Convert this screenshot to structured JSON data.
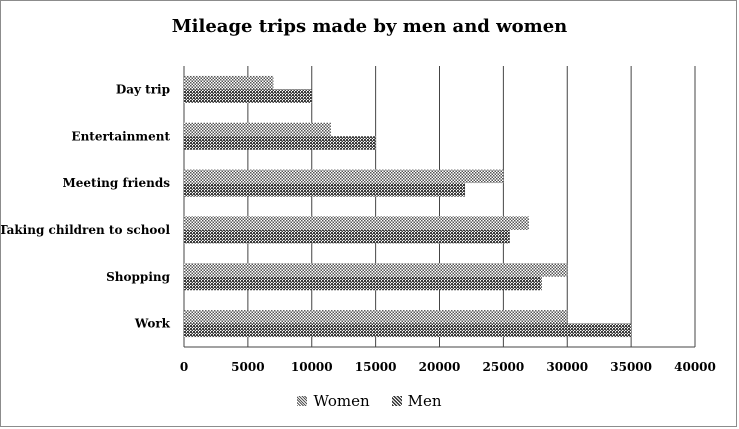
{
  "chart_data": {
    "type": "bar",
    "orientation": "horizontal",
    "title": "Mileage trips made by men and women",
    "categories": [
      "Day trip",
      "Entertainment",
      "Meeting friends",
      "Taking children to school",
      "Shopping",
      "Work"
    ],
    "series": [
      {
        "name": "Women",
        "values": [
          7000,
          11500,
          25000,
          27000,
          30000,
          30000
        ]
      },
      {
        "name": "Men",
        "values": [
          10000,
          15000,
          22000,
          25500,
          28000,
          35000
        ]
      }
    ],
    "xlim": [
      0,
      40000
    ],
    "xticks": [
      0,
      5000,
      10000,
      15000,
      20000,
      25000,
      30000,
      35000,
      40000
    ],
    "grid": "vertical",
    "legend": "bottom",
    "colors": {
      "women": "#8a8a8a",
      "men": "#6e6e6e",
      "grid": "#444444"
    }
  }
}
